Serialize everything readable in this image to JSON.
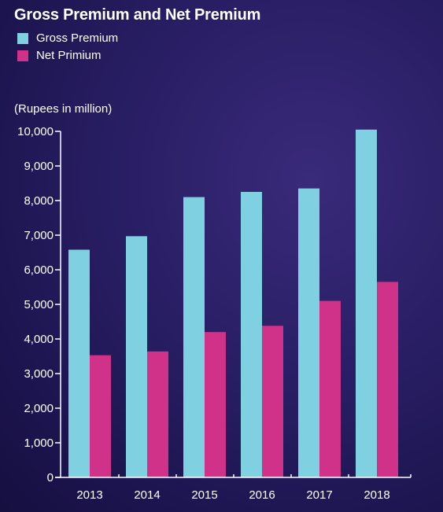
{
  "chart_data": {
    "type": "bar",
    "title": "Gross Premium and Net Premium",
    "ylabel": "(Rupees in million)",
    "categories": [
      "2013",
      "2014",
      "2015",
      "2016",
      "2017",
      "2018"
    ],
    "series": [
      {
        "name": "Gross Premium",
        "color": "#7fd0e0",
        "values": [
          6580,
          6970,
          8100,
          8250,
          8350,
          10050
        ]
      },
      {
        "name": "Net Primium",
        "color": "#d0328a",
        "values": [
          3530,
          3640,
          4200,
          4380,
          5100,
          5650
        ]
      }
    ],
    "ylim": [
      0,
      10000
    ],
    "yticks": [
      0,
      1000,
      2000,
      3000,
      4000,
      5000,
      6000,
      7000,
      8000,
      9000,
      10000
    ],
    "ytick_labels": [
      "0",
      "1,000",
      "2,000",
      "3,000",
      "4,000",
      "5,000",
      "6,000",
      "7,000",
      "8,000",
      "9,000",
      "10,000"
    ],
    "grid": false,
    "legend": "top-left"
  }
}
